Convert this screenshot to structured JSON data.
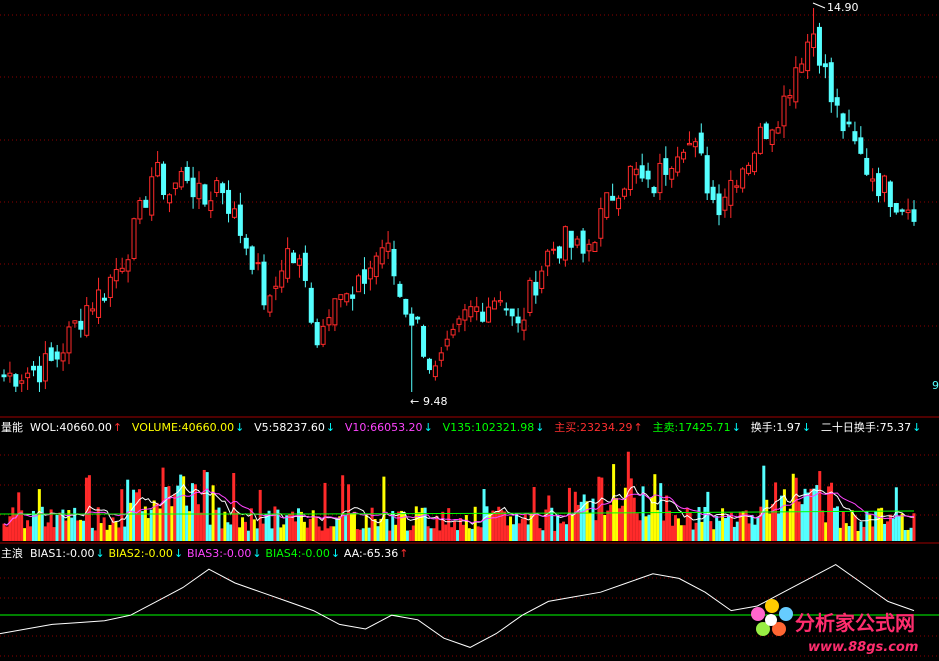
{
  "price_panel": {
    "high_label": "14.90",
    "low_label": "9.48",
    "right_edge_label": "9"
  },
  "volume_panel": {
    "title": "量能",
    "indicators": [
      {
        "text": "WOL:40660.00",
        "arrow": "↑",
        "color": "#ffffff",
        "arrow_color": "#ff3030"
      },
      {
        "text": "VOLUME:40660.00",
        "arrow": "↓",
        "color": "#ffff00",
        "arrow_color": "#00ffff"
      },
      {
        "text": "V5:58237.60",
        "arrow": "↓",
        "color": "#ffffff",
        "arrow_color": "#00ffff"
      },
      {
        "text": "V10:66053.20",
        "arrow": "↓",
        "color": "#ff44ff",
        "arrow_color": "#00ffff"
      },
      {
        "text": "V135:102321.98",
        "arrow": "↓",
        "color": "#00ff00",
        "arrow_color": "#00ffff"
      },
      {
        "text": "主买:23234.29",
        "arrow": "↑",
        "color": "#ff3030",
        "arrow_color": "#ff3030"
      },
      {
        "text": "主卖:17425.71",
        "arrow": "↓",
        "color": "#00ff00",
        "arrow_color": "#00ffff"
      },
      {
        "text": "换手:1.97",
        "arrow": "↓",
        "color": "#ffffff",
        "arrow_color": "#00ffff"
      },
      {
        "text": "二十日换手:75.37",
        "arrow": "↓",
        "color": "#ffffff",
        "arrow_color": "#00ffff"
      }
    ]
  },
  "bias_panel": {
    "title": "主浪",
    "indicators": [
      {
        "text": "BIAS1:-0.00",
        "arrow": "↓",
        "color": "#ffffff",
        "arrow_color": "#00ffff"
      },
      {
        "text": "BIAS2:-0.00",
        "arrow": "↓",
        "color": "#ffff00",
        "arrow_color": "#00ffff"
      },
      {
        "text": "BIAS3:-0.00",
        "arrow": "↓",
        "color": "#ff44ff",
        "arrow_color": "#00ffff"
      },
      {
        "text": "BIAS4:-0.00",
        "arrow": "↓",
        "color": "#00ff00",
        "arrow_color": "#00ffff"
      },
      {
        "text": "AA:-65.36",
        "arrow": "↑",
        "color": "#ffffff",
        "arrow_color": "#ff3030"
      }
    ]
  },
  "watermark": {
    "site_name": "分析家公式网",
    "url": "www.88gs.com"
  },
  "colors": {
    "up": "#ff2a2a",
    "down": "#55ffff",
    "grid": "#8b0000",
    "panel_border": "#a00000",
    "yellow": "#ffff00",
    "green": "#00ff00",
    "magenta": "#ff44ff",
    "white": "#ffffff"
  },
  "chart_data": [
    {
      "type": "candlestick",
      "title": "",
      "price_range": [
        9.48,
        14.9
      ],
      "annotations": [
        {
          "label": "14.90",
          "kind": "high"
        },
        {
          "label": "9.48",
          "kind": "low"
        }
      ],
      "close_trend": [
        9.7,
        9.75,
        9.8,
        9.9,
        10.3,
        10.7,
        10.9,
        11.3,
        11.8,
        12.6,
        12.3,
        12.6,
        12.1,
        12.5,
        11.9,
        11.4,
        10.6,
        11.5,
        11.2,
        10.2,
        11.0,
        10.7,
        11.2,
        11.6,
        10.8,
        10.4,
        9.7,
        10.1,
        10.6,
        10.7,
        10.9,
        10.3,
        11.0,
        11.5,
        11.6,
        11.4,
        11.9,
        12.4,
        12.6,
        12.3,
        12.7,
        13.1,
        12.8,
        12.1,
        12.5,
        12.8,
        13.2,
        13.5,
        14.2,
        14.6,
        13.6,
        13.1,
        12.7,
        12.4,
        12.2,
        12.1
      ]
    },
    {
      "type": "bar",
      "title": "量能",
      "series_names": [
        "VOLUME",
        "V5",
        "V10",
        "V135"
      ],
      "latest": {
        "VOLUME": 40660.0,
        "V5": 58237.6,
        "V10": 66053.2,
        "V135": 102321.98
      }
    },
    {
      "type": "line",
      "title": "主浪",
      "series_names": [
        "BIAS1",
        "BIAS2",
        "BIAS3",
        "BIAS4",
        "AA"
      ],
      "latest": {
        "BIAS1": -0.0,
        "BIAS2": -0.0,
        "BIAS3": -0.0,
        "BIAS4": -0.0,
        "AA": -65.36
      },
      "aa_trend": [
        -80,
        -75,
        -70,
        -68,
        -66,
        -60,
        -45,
        -30,
        -10,
        -25,
        -35,
        -45,
        -55,
        -70,
        -75,
        -60,
        -65,
        -85,
        -95,
        -80,
        -60,
        -45,
        -40,
        -35,
        -25,
        -15,
        -20,
        -35,
        -55,
        -50,
        -35,
        -20,
        -5,
        -25,
        -45,
        -55
      ]
    }
  ]
}
